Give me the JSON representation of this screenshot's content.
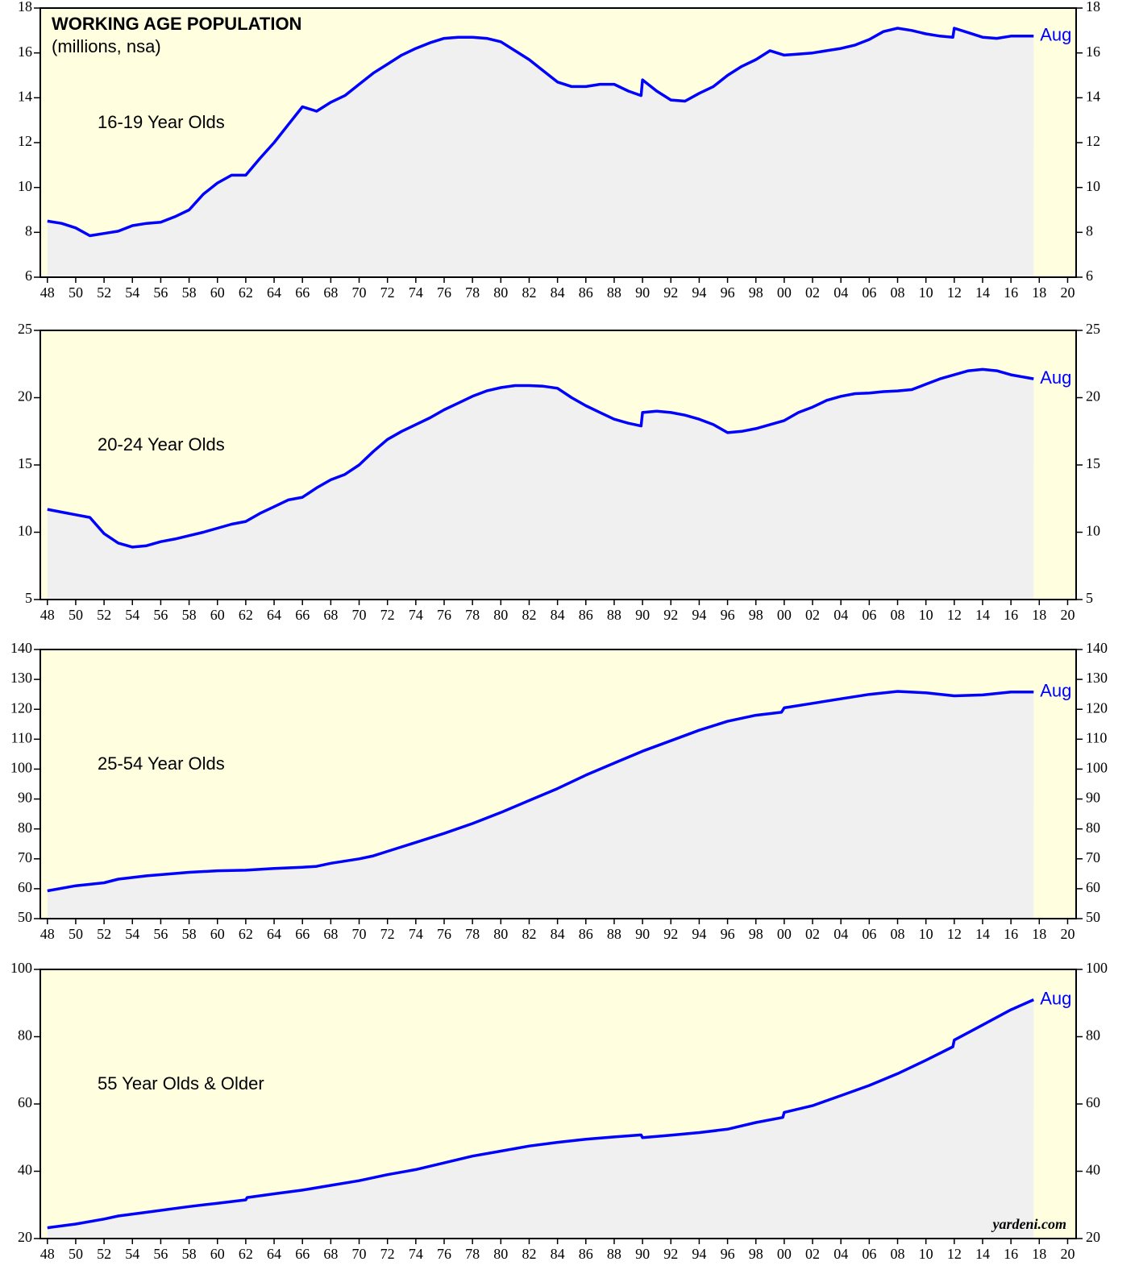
{
  "chart_data": [
    {
      "type": "area",
      "title": "WORKING AGE POPULATION",
      "subtitle": "(millions, nsa)",
      "label": "16-19 Year Olds",
      "end_label": "Aug",
      "color": "#0000ff",
      "fill_color": "#f0f0f0",
      "background": "#ffffe0",
      "x": [
        1948,
        1949,
        1950,
        1951,
        1952,
        1953,
        1954,
        1955,
        1956,
        1957,
        1958,
        1959,
        1960,
        1961,
        1962,
        1963,
        1964,
        1965,
        1966,
        1967,
        1968,
        1969,
        1970,
        1971,
        1972,
        1973,
        1974,
        1975,
        1976,
        1977,
        1978,
        1979,
        1980,
        1981,
        1982,
        1983,
        1984,
        1985,
        1986,
        1987,
        1988,
        1989,
        1989.9,
        1990,
        1991,
        1992,
        1993,
        1994,
        1995,
        1996,
        1997,
        1998,
        1999,
        2000,
        2001,
        2002,
        2003,
        2004,
        2005,
        2006,
        2007,
        2008,
        2009,
        2010,
        2011,
        2011.9,
        2012,
        2013,
        2014,
        2015,
        2016,
        2017.6
      ],
      "values": [
        8.5,
        8.4,
        8.2,
        7.85,
        7.95,
        8.05,
        8.3,
        8.4,
        8.45,
        8.7,
        9.0,
        9.7,
        10.2,
        10.55,
        10.55,
        11.3,
        12.0,
        12.8,
        13.6,
        13.4,
        13.8,
        14.1,
        14.6,
        15.1,
        15.5,
        15.9,
        16.2,
        16.45,
        16.65,
        16.7,
        16.7,
        16.65,
        16.5,
        16.1,
        15.7,
        15.2,
        14.7,
        14.5,
        14.5,
        14.6,
        14.6,
        14.3,
        14.1,
        14.8,
        14.3,
        13.9,
        13.85,
        14.2,
        14.5,
        15.0,
        15.4,
        15.7,
        16.1,
        15.9,
        15.95,
        16.0,
        16.1,
        16.2,
        16.35,
        16.6,
        16.95,
        17.1,
        17.0,
        16.85,
        16.75,
        16.7,
        17.1,
        16.9,
        16.7,
        16.65,
        16.75,
        16.75
      ],
      "xlim": [
        1947.5,
        2020.6
      ],
      "ylim": [
        6,
        18
      ],
      "yticks": [
        6,
        8,
        10,
        12,
        14,
        16,
        18
      ],
      "xticks": [
        {
          "value": 1948,
          "label": "48"
        },
        {
          "value": 1950,
          "label": "50"
        },
        {
          "value": 1952,
          "label": "52"
        },
        {
          "value": 1954,
          "label": "54"
        },
        {
          "value": 1956,
          "label": "56"
        },
        {
          "value": 1958,
          "label": "58"
        },
        {
          "value": 1960,
          "label": "60"
        },
        {
          "value": 1962,
          "label": "62"
        },
        {
          "value": 1964,
          "label": "64"
        },
        {
          "value": 1966,
          "label": "66"
        },
        {
          "value": 1968,
          "label": "68"
        },
        {
          "value": 1970,
          "label": "70"
        },
        {
          "value": 1972,
          "label": "72"
        },
        {
          "value": 1974,
          "label": "74"
        },
        {
          "value": 1976,
          "label": "76"
        },
        {
          "value": 1978,
          "label": "78"
        },
        {
          "value": 1980,
          "label": "80"
        },
        {
          "value": 1982,
          "label": "82"
        },
        {
          "value": 1984,
          "label": "84"
        },
        {
          "value": 1986,
          "label": "86"
        },
        {
          "value": 1988,
          "label": "88"
        },
        {
          "value": 1990,
          "label": "90"
        },
        {
          "value": 1992,
          "label": "92"
        },
        {
          "value": 1994,
          "label": "94"
        },
        {
          "value": 1996,
          "label": "96"
        },
        {
          "value": 1998,
          "label": "98"
        },
        {
          "value": 2000,
          "label": "00"
        },
        {
          "value": 2002,
          "label": "02"
        },
        {
          "value": 2004,
          "label": "04"
        },
        {
          "value": 2006,
          "label": "06"
        },
        {
          "value": 2008,
          "label": "08"
        },
        {
          "value": 2010,
          "label": "10"
        },
        {
          "value": 2012,
          "label": "12"
        },
        {
          "value": 2014,
          "label": "14"
        },
        {
          "value": 2016,
          "label": "16"
        },
        {
          "value": 2018,
          "label": "18"
        },
        {
          "value": 2020,
          "label": "20"
        }
      ]
    },
    {
      "type": "area",
      "label": "20-24 Year Olds",
      "end_label": "Aug",
      "color": "#0000ff",
      "fill_color": "#f0f0f0",
      "background": "#ffffe0",
      "x": [
        1948,
        1949,
        1950,
        1951,
        1952,
        1953,
        1954,
        1955,
        1956,
        1957,
        1958,
        1959,
        1960,
        1961,
        1962,
        1963,
        1964,
        1965,
        1966,
        1967,
        1968,
        1969,
        1970,
        1971,
        1972,
        1973,
        1974,
        1975,
        1976,
        1977,
        1978,
        1979,
        1980,
        1981,
        1982,
        1983,
        1984,
        1985,
        1986,
        1987,
        1988,
        1989,
        1989.9,
        1990,
        1991,
        1992,
        1993,
        1994,
        1995,
        1996,
        1997,
        1998,
        1999,
        2000,
        2001,
        2002,
        2003,
        2004,
        2005,
        2006,
        2007,
        2008,
        2009,
        2010,
        2011,
        2012,
        2013,
        2014,
        2015,
        2016,
        2017.6
      ],
      "values": [
        11.7,
        11.5,
        11.3,
        11.1,
        9.9,
        9.2,
        8.9,
        9.0,
        9.3,
        9.5,
        9.75,
        10.0,
        10.3,
        10.6,
        10.8,
        11.4,
        11.9,
        12.4,
        12.6,
        13.3,
        13.9,
        14.3,
        15.0,
        16.0,
        16.9,
        17.5,
        18.0,
        18.5,
        19.1,
        19.6,
        20.1,
        20.5,
        20.75,
        20.9,
        20.9,
        20.85,
        20.7,
        20.0,
        19.4,
        18.9,
        18.4,
        18.1,
        17.9,
        18.9,
        19.0,
        18.9,
        18.7,
        18.4,
        18.0,
        17.4,
        17.5,
        17.7,
        18.0,
        18.3,
        18.9,
        19.3,
        19.8,
        20.1,
        20.3,
        20.35,
        20.45,
        20.5,
        20.6,
        21.0,
        21.4,
        21.7,
        22.0,
        22.1,
        22.0,
        21.7,
        21.4
      ],
      "xlim": [
        1947.5,
        2020.6
      ],
      "ylim": [
        5,
        25
      ],
      "yticks": [
        5,
        10,
        15,
        20,
        25
      ],
      "xticks": [
        {
          "value": 1948,
          "label": "48"
        },
        {
          "value": 1950,
          "label": "50"
        },
        {
          "value": 1952,
          "label": "52"
        },
        {
          "value": 1954,
          "label": "54"
        },
        {
          "value": 1956,
          "label": "56"
        },
        {
          "value": 1958,
          "label": "58"
        },
        {
          "value": 1960,
          "label": "60"
        },
        {
          "value": 1962,
          "label": "62"
        },
        {
          "value": 1964,
          "label": "64"
        },
        {
          "value": 1966,
          "label": "66"
        },
        {
          "value": 1968,
          "label": "68"
        },
        {
          "value": 1970,
          "label": "70"
        },
        {
          "value": 1972,
          "label": "72"
        },
        {
          "value": 1974,
          "label": "74"
        },
        {
          "value": 1976,
          "label": "76"
        },
        {
          "value": 1978,
          "label": "78"
        },
        {
          "value": 1980,
          "label": "80"
        },
        {
          "value": 1982,
          "label": "82"
        },
        {
          "value": 1984,
          "label": "84"
        },
        {
          "value": 1986,
          "label": "86"
        },
        {
          "value": 1988,
          "label": "88"
        },
        {
          "value": 1990,
          "label": "90"
        },
        {
          "value": 1992,
          "label": "92"
        },
        {
          "value": 1994,
          "label": "94"
        },
        {
          "value": 1996,
          "label": "96"
        },
        {
          "value": 1998,
          "label": "98"
        },
        {
          "value": 2000,
          "label": "00"
        },
        {
          "value": 2002,
          "label": "02"
        },
        {
          "value": 2004,
          "label": "04"
        },
        {
          "value": 2006,
          "label": "06"
        },
        {
          "value": 2008,
          "label": "08"
        },
        {
          "value": 2010,
          "label": "10"
        },
        {
          "value": 2012,
          "label": "12"
        },
        {
          "value": 2014,
          "label": "14"
        },
        {
          "value": 2016,
          "label": "16"
        },
        {
          "value": 2018,
          "label": "18"
        },
        {
          "value": 2020,
          "label": "20"
        }
      ]
    },
    {
      "type": "area",
      "label": "25-54 Year Olds",
      "end_label": "Aug",
      "color": "#0000ff",
      "fill_color": "#f0f0f0",
      "background": "#ffffe0",
      "x": [
        1948,
        1950,
        1952,
        1953,
        1955,
        1958,
        1960,
        1962,
        1964,
        1966,
        1967,
        1968,
        1970,
        1971,
        1972,
        1974,
        1976,
        1978,
        1980,
        1982,
        1984,
        1986,
        1988,
        1990,
        1992,
        1994,
        1996,
        1998,
        1999.8,
        2000,
        2002,
        2004,
        2006,
        2008,
        2010,
        2012,
        2014,
        2016,
        2017.6
      ],
      "values": [
        59.3,
        61,
        62,
        63.2,
        64.3,
        65.5,
        66,
        66.2,
        66.8,
        67.2,
        67.5,
        68.5,
        70,
        71,
        72.5,
        75.5,
        78.5,
        81.8,
        85.5,
        89.5,
        93.5,
        98,
        102,
        106,
        109.5,
        113,
        116,
        118,
        119,
        120.5,
        122,
        123.5,
        125,
        126,
        125.5,
        124.5,
        124.8,
        125.8,
        125.8
      ],
      "xlim": [
        1947.5,
        2020.6
      ],
      "ylim": [
        50,
        140
      ],
      "yticks": [
        50,
        60,
        70,
        80,
        90,
        100,
        110,
        120,
        130,
        140
      ],
      "xticks": [
        {
          "value": 1948,
          "label": "48"
        },
        {
          "value": 1950,
          "label": "50"
        },
        {
          "value": 1952,
          "label": "52"
        },
        {
          "value": 1954,
          "label": "54"
        },
        {
          "value": 1956,
          "label": "56"
        },
        {
          "value": 1958,
          "label": "58"
        },
        {
          "value": 1960,
          "label": "60"
        },
        {
          "value": 1962,
          "label": "62"
        },
        {
          "value": 1964,
          "label": "64"
        },
        {
          "value": 1966,
          "label": "66"
        },
        {
          "value": 1968,
          "label": "68"
        },
        {
          "value": 1970,
          "label": "70"
        },
        {
          "value": 1972,
          "label": "72"
        },
        {
          "value": 1974,
          "label": "74"
        },
        {
          "value": 1976,
          "label": "76"
        },
        {
          "value": 1978,
          "label": "78"
        },
        {
          "value": 1980,
          "label": "80"
        },
        {
          "value": 1982,
          "label": "82"
        },
        {
          "value": 1984,
          "label": "84"
        },
        {
          "value": 1986,
          "label": "86"
        },
        {
          "value": 1988,
          "label": "88"
        },
        {
          "value": 1990,
          "label": "90"
        },
        {
          "value": 1992,
          "label": "92"
        },
        {
          "value": 1994,
          "label": "94"
        },
        {
          "value": 1996,
          "label": "96"
        },
        {
          "value": 1998,
          "label": "98"
        },
        {
          "value": 2000,
          "label": "00"
        },
        {
          "value": 2002,
          "label": "02"
        },
        {
          "value": 2004,
          "label": "04"
        },
        {
          "value": 2006,
          "label": "06"
        },
        {
          "value": 2008,
          "label": "08"
        },
        {
          "value": 2010,
          "label": "10"
        },
        {
          "value": 2012,
          "label": "12"
        },
        {
          "value": 2014,
          "label": "14"
        },
        {
          "value": 2016,
          "label": "16"
        },
        {
          "value": 2018,
          "label": "18"
        },
        {
          "value": 2020,
          "label": "20"
        }
      ]
    },
    {
      "type": "area",
      "label": "55 Year Olds & Older",
      "end_label": "Aug",
      "source": "yardeni.com",
      "color": "#0000ff",
      "fill_color": "#f0f0f0",
      "background": "#ffffe0",
      "x": [
        1948,
        1950,
        1952,
        1953,
        1955,
        1958,
        1960,
        1962,
        1962.1,
        1964,
        1966,
        1968,
        1970,
        1972,
        1974,
        1976,
        1978,
        1980,
        1982,
        1984,
        1986,
        1988,
        1989.9,
        1990,
        1992,
        1994,
        1996,
        1998,
        1999.9,
        2000,
        2002,
        2004,
        2006,
        2008,
        2010,
        2011.9,
        2012,
        2014,
        2016,
        2017.6
      ],
      "values": [
        23.2,
        24.3,
        25.8,
        26.7,
        27.8,
        29.5,
        30.5,
        31.5,
        32.2,
        33.3,
        34.4,
        35.8,
        37.2,
        39,
        40.5,
        42.5,
        44.5,
        46,
        47.5,
        48.6,
        49.5,
        50.2,
        50.8,
        50.0,
        50.7,
        51.5,
        52.5,
        54.5,
        56,
        57.5,
        59.5,
        62.5,
        65.5,
        69,
        73,
        77,
        79,
        83.5,
        88,
        91
      ],
      "xlim": [
        1947.5,
        2020.6
      ],
      "ylim": [
        20,
        100
      ],
      "yticks": [
        20,
        40,
        60,
        80,
        100
      ],
      "xticks": [
        {
          "value": 1948,
          "label": "48"
        },
        {
          "value": 1950,
          "label": "50"
        },
        {
          "value": 1952,
          "label": "52"
        },
        {
          "value": 1954,
          "label": "54"
        },
        {
          "value": 1956,
          "label": "56"
        },
        {
          "value": 1958,
          "label": "58"
        },
        {
          "value": 1960,
          "label": "60"
        },
        {
          "value": 1962,
          "label": "62"
        },
        {
          "value": 1964,
          "label": "64"
        },
        {
          "value": 1966,
          "label": "66"
        },
        {
          "value": 1968,
          "label": "68"
        },
        {
          "value": 1970,
          "label": "70"
        },
        {
          "value": 1972,
          "label": "72"
        },
        {
          "value": 1974,
          "label": "74"
        },
        {
          "value": 1976,
          "label": "76"
        },
        {
          "value": 1978,
          "label": "78"
        },
        {
          "value": 1980,
          "label": "80"
        },
        {
          "value": 1982,
          "label": "82"
        },
        {
          "value": 1984,
          "label": "84"
        },
        {
          "value": 1986,
          "label": "86"
        },
        {
          "value": 1988,
          "label": "88"
        },
        {
          "value": 1990,
          "label": "90"
        },
        {
          "value": 1992,
          "label": "92"
        },
        {
          "value": 1994,
          "label": "94"
        },
        {
          "value": 1996,
          "label": "96"
        },
        {
          "value": 1998,
          "label": "98"
        },
        {
          "value": 2000,
          "label": "00"
        },
        {
          "value": 2002,
          "label": "02"
        },
        {
          "value": 2004,
          "label": "04"
        },
        {
          "value": 2006,
          "label": "06"
        },
        {
          "value": 2008,
          "label": "08"
        },
        {
          "value": 2010,
          "label": "10"
        },
        {
          "value": 2012,
          "label": "12"
        },
        {
          "value": 2014,
          "label": "14"
        },
        {
          "value": 2016,
          "label": "16"
        },
        {
          "value": 2018,
          "label": "18"
        },
        {
          "value": 2020,
          "label": "20"
        }
      ]
    }
  ]
}
